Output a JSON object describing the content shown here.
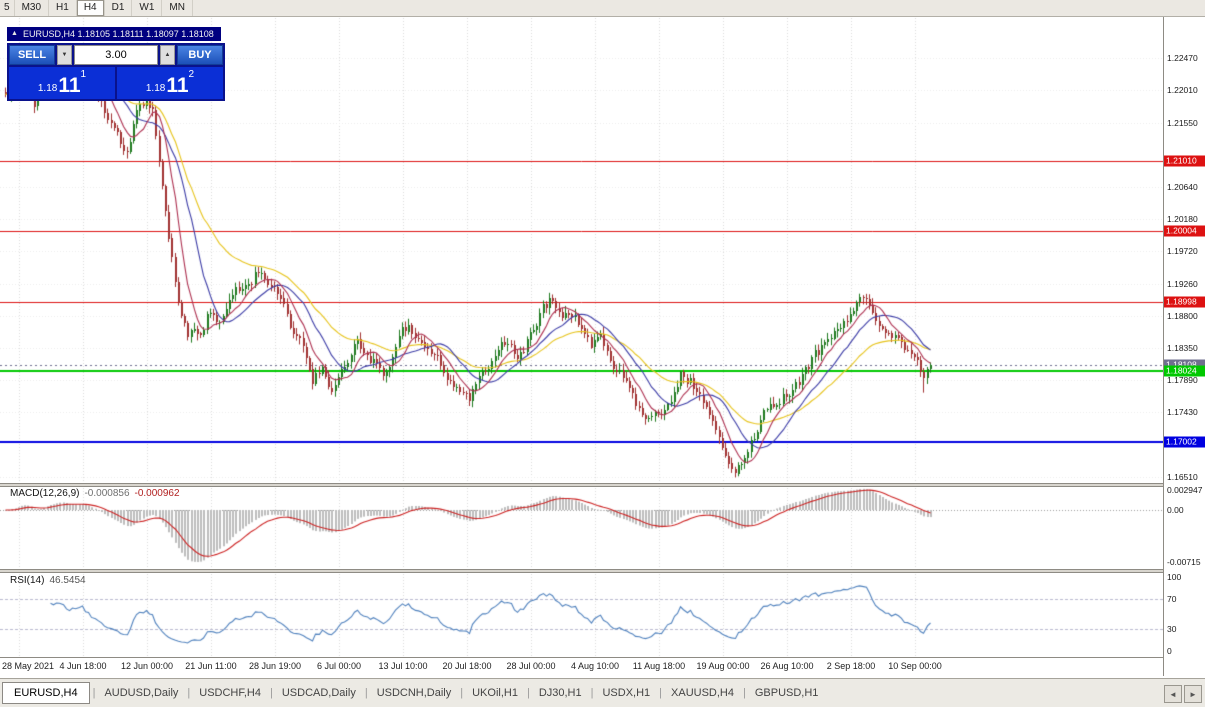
{
  "toolbar": {
    "timeframes": [
      "5",
      "M30",
      "H1",
      "H4",
      "D1",
      "W1",
      "MN"
    ],
    "active": "H4"
  },
  "chart": {
    "symbol_bar": {
      "icon": "▲",
      "text": "EURUSD,H4 1.18105 1.18111 1.18097 1.18108"
    },
    "trade_panel": {
      "sell_label": "SELL",
      "buy_label": "BUY",
      "lot_size": "3.00",
      "spin_down_icon": "▼",
      "spin_up_icon": "▲",
      "sell_price": {
        "small": "1.18",
        "big": "11",
        "sup": "1"
      },
      "buy_price": {
        "small": "1.18",
        "big": "11",
        "sup": "2"
      }
    }
  },
  "chart_data": {
    "type": "candlestick",
    "symbol": "EURUSD",
    "timeframe": "H4",
    "bars": 290,
    "last_close": 1.18108,
    "colors": {
      "bull": "#1e7a1e",
      "bear": "#a03030"
    },
    "price_axis": {
      "ticks": [
        "1.22470",
        "1.22010",
        "1.21550",
        "1.20640",
        "1.20180",
        "1.19720",
        "1.19260",
        "1.18800",
        "1.18350",
        "1.17890",
        "1.17430",
        "1.16510"
      ],
      "levels": [
        {
          "value": 1.2101,
          "label": "1.21010",
          "color": "#dd1111",
          "width": 1
        },
        {
          "value": 1.20004,
          "label": "1.20004",
          "color": "#dd1111",
          "width": 1
        },
        {
          "value": 1.18998,
          "label": "1.18998",
          "color": "#dd1111",
          "width": 1
        },
        {
          "value": 1.18024,
          "label": "1.18024",
          "color": "#00c800",
          "width": 2
        },
        {
          "value": 1.17002,
          "label": "1.17002",
          "color": "#0000e0",
          "width": 2
        }
      ],
      "current_price": {
        "value": 1.18108,
        "label": "1.18108",
        "color": "#6f6f8f"
      }
    },
    "time_axis": {
      "labels": [
        {
          "i": 4,
          "t": "28 May 2021"
        },
        {
          "i": 24,
          "t": "4 Jun 18:00"
        },
        {
          "i": 44,
          "t": "12 Jun 00:00"
        },
        {
          "i": 64,
          "t": "21 Jun 11:00"
        },
        {
          "i": 84,
          "t": "28 Jun 19:00"
        },
        {
          "i": 104,
          "t": "6 Jul 00:00"
        },
        {
          "i": 124,
          "t": "13 Jul 10:00"
        },
        {
          "i": 144,
          "t": "20 Jul 18:00"
        },
        {
          "i": 164,
          "t": "28 Jul 00:00"
        },
        {
          "i": 184,
          "t": "4 Aug 10:00"
        },
        {
          "i": 204,
          "t": "11 Aug 18:00"
        },
        {
          "i": 224,
          "t": "19 Aug 00:00"
        },
        {
          "i": 244,
          "t": "26 Aug 10:00"
        },
        {
          "i": 264,
          "t": "2 Sep 18:00"
        },
        {
          "i": 284,
          "t": "10 Sep 00:00"
        }
      ]
    },
    "series_anchors": [
      [
        0,
        1.219
      ],
      [
        5,
        1.2228
      ],
      [
        9,
        1.218
      ],
      [
        13,
        1.2238
      ],
      [
        16,
        1.225
      ],
      [
        20,
        1.2228
      ],
      [
        24,
        1.2242
      ],
      [
        28,
        1.2206
      ],
      [
        32,
        1.2168
      ],
      [
        36,
        1.213
      ],
      [
        38,
        1.2112
      ],
      [
        40,
        1.215
      ],
      [
        42,
        1.2178
      ],
      [
        44,
        1.2188
      ],
      [
        46,
        1.2175
      ],
      [
        48,
        1.2105
      ],
      [
        50,
        1.203
      ],
      [
        52,
        1.1958
      ],
      [
        54,
        1.19
      ],
      [
        57,
        1.1858
      ],
      [
        59,
        1.1872
      ],
      [
        61,
        1.1852
      ],
      [
        63,
        1.188
      ],
      [
        66,
        1.1868
      ],
      [
        69,
        1.1895
      ],
      [
        72,
        1.1912
      ],
      [
        76,
        1.1928
      ],
      [
        80,
        1.1948
      ],
      [
        84,
        1.1916
      ],
      [
        88,
        1.1874
      ],
      [
        92,
        1.184
      ],
      [
        96,
        1.1786
      ],
      [
        99,
        1.1808
      ],
      [
        102,
        1.1772
      ],
      [
        106,
        1.1812
      ],
      [
        110,
        1.1846
      ],
      [
        114,
        1.182
      ],
      [
        118,
        1.1798
      ],
      [
        122,
        1.184
      ],
      [
        126,
        1.1868
      ],
      [
        130,
        1.1846
      ],
      [
        134,
        1.182
      ],
      [
        138,
        1.18
      ],
      [
        142,
        1.1772
      ],
      [
        145,
        1.1756
      ],
      [
        148,
        1.1788
      ],
      [
        152,
        1.1818
      ],
      [
        156,
        1.184
      ],
      [
        160,
        1.1822
      ],
      [
        164,
        1.185
      ],
      [
        168,
        1.1892
      ],
      [
        171,
        1.1906
      ],
      [
        174,
        1.188
      ],
      [
        177,
        1.1888
      ],
      [
        180,
        1.1858
      ],
      [
        183,
        1.1836
      ],
      [
        186,
        1.185
      ],
      [
        189,
        1.182
      ],
      [
        192,
        1.18
      ],
      [
        195,
        1.1768
      ],
      [
        198,
        1.175
      ],
      [
        202,
        1.174
      ],
      [
        205,
        1.1736
      ],
      [
        208,
        1.1764
      ],
      [
        211,
        1.18
      ],
      [
        214,
        1.1788
      ],
      [
        217,
        1.1772
      ],
      [
        220,
        1.1748
      ],
      [
        223,
        1.1712
      ],
      [
        226,
        1.1678
      ],
      [
        228,
        1.1666
      ],
      [
        231,
        1.1684
      ],
      [
        234,
        1.1708
      ],
      [
        237,
        1.1736
      ],
      [
        240,
        1.1754
      ],
      [
        244,
        1.177
      ],
      [
        248,
        1.1788
      ],
      [
        252,
        1.1816
      ],
      [
        256,
        1.184
      ],
      [
        260,
        1.1862
      ],
      [
        264,
        1.1886
      ],
      [
        267,
        1.19
      ],
      [
        270,
        1.1888
      ],
      [
        273,
        1.1868
      ],
      [
        276,
        1.1852
      ],
      [
        279,
        1.1844
      ],
      [
        282,
        1.1828
      ],
      [
        285,
        1.1812
      ],
      [
        287,
        1.1794
      ],
      [
        289,
        1.18108
      ]
    ],
    "wick_overrides": [
      [
        16,
        "h",
        1.2262
      ],
      [
        57,
        "l",
        1.1847
      ],
      [
        145,
        "l",
        1.1752
      ],
      [
        228,
        "l",
        1.16635
      ],
      [
        267,
        "h",
        1.19085
      ],
      [
        287,
        "l",
        1.1771
      ]
    ],
    "moving_averages": [
      {
        "kind": "ema",
        "period": 34,
        "color": "#e6c31a"
      },
      {
        "kind": "sma",
        "period": 16,
        "color": "#3b3ba6"
      },
      {
        "kind": "sma",
        "period": 8,
        "color": "#ad3050"
      }
    ],
    "macd": {
      "label": "MACD(12,26,9)",
      "value_main": "-0.000856",
      "value_signal": "-0.000962",
      "fast": 12,
      "slow": 26,
      "signal": 9,
      "axis": [
        {
          "v": 0.002947,
          "t": "0.002947"
        },
        {
          "v": 0,
          "t": "0.00"
        },
        {
          "v": -0.00715,
          "t": "-0.00715"
        }
      ],
      "hist_color": "#bdbdbd",
      "signal_color": "#cc2222"
    },
    "rsi": {
      "label": "RSI(14)",
      "value": "46.5454",
      "period": 14,
      "color": "#4f81bd",
      "levels": [
        70,
        30
      ],
      "axis": [
        {
          "v": 100,
          "t": "100"
        },
        {
          "v": 70,
          "t": "70"
        },
        {
          "v": 30,
          "t": "30"
        },
        {
          "v": 0,
          "t": "0"
        }
      ]
    }
  },
  "bottom_tabs": {
    "tabs": [
      "EURUSD,H4",
      "AUDUSD,Daily",
      "USDCHF,H4",
      "USDCAD,Daily",
      "USDCNH,Daily",
      "UKOil,H1",
      "DJ30,H1",
      "USDX,H1",
      "XAUUSD,H4",
      "GBPUSD,H1"
    ],
    "active_index": 0,
    "scroll_left_icon": "◄",
    "scroll_right_icon": "►"
  }
}
